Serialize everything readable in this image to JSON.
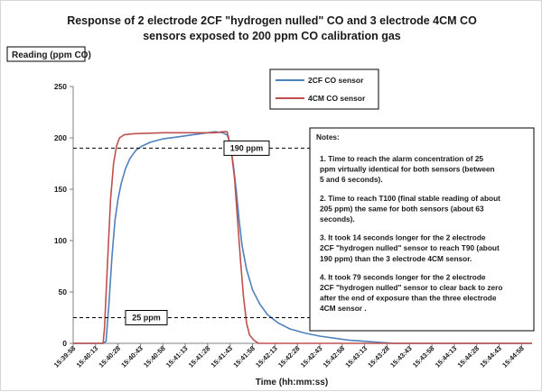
{
  "chart_data": {
    "type": "line",
    "title": "Response of 2 electrode 2CF \"hydrogen nulled\" CO and 3 electrode 4CM CO sensors exposed to 200 ppm CO calibration gas",
    "title_lines": [
      "Response of 2 electrode 2CF \"hydrogen nulled\" CO and 3 electrode 4CM CO",
      "sensors exposed to 200 ppm CO calibration gas"
    ],
    "ylabel": "Reading (ppm CO)",
    "xlabel": "Time (hh:mm:ss)",
    "ylim": [
      0,
      250
    ],
    "yticks": [
      0,
      50,
      100,
      150,
      200,
      250
    ],
    "xticks": [
      "15:39:58",
      "15:40:13",
      "15:40:28",
      "15:40:43",
      "15:40:58",
      "15:41:13",
      "15:41:28",
      "15:41:43",
      "15:41:58",
      "15:42:13",
      "15:42:28",
      "15:42:43",
      "15:42:58",
      "15:43:13",
      "15:43:28",
      "15:43:43",
      "15:43:58",
      "15:44:13",
      "15:44:28",
      "15:44:43",
      "15:44:58"
    ],
    "x_unit_seconds_from_first_tick": true,
    "xlim_seconds": [
      0,
      307
    ],
    "grid": false,
    "legend_position": "top-right",
    "series": [
      {
        "name": "2CF CO sensor",
        "color": "#4f81bd",
        "points": [
          [
            0,
            0
          ],
          [
            20,
            0
          ],
          [
            22,
            2
          ],
          [
            24,
            40
          ],
          [
            26,
            85
          ],
          [
            28,
            120
          ],
          [
            30,
            140
          ],
          [
            32,
            155
          ],
          [
            35,
            170
          ],
          [
            38,
            180
          ],
          [
            42,
            188
          ],
          [
            46,
            192
          ],
          [
            52,
            196
          ],
          [
            60,
            199
          ],
          [
            70,
            201
          ],
          [
            80,
            203
          ],
          [
            90,
            205
          ],
          [
            95,
            206
          ],
          [
            100,
            205
          ],
          [
            103,
            203
          ],
          [
            105,
            195
          ],
          [
            107,
            175
          ],
          [
            109,
            150
          ],
          [
            111,
            120
          ],
          [
            113,
            95
          ],
          [
            116,
            72
          ],
          [
            120,
            52
          ],
          [
            125,
            38
          ],
          [
            130,
            28
          ],
          [
            137,
            20
          ],
          [
            145,
            14
          ],
          [
            155,
            10
          ],
          [
            165,
            7
          ],
          [
            175,
            5
          ],
          [
            185,
            3
          ],
          [
            195,
            2
          ],
          [
            205,
            1
          ],
          [
            215,
            0
          ],
          [
            307,
            0
          ]
        ]
      },
      {
        "name": "4CM CO sensor",
        "color": "#c0504d",
        "points": [
          [
            0,
            0
          ],
          [
            20,
            0
          ],
          [
            21,
            15
          ],
          [
            23,
            80
          ],
          [
            25,
            140
          ],
          [
            27,
            175
          ],
          [
            29,
            192
          ],
          [
            31,
            200
          ],
          [
            34,
            203
          ],
          [
            40,
            204
          ],
          [
            60,
            205
          ],
          [
            80,
            205
          ],
          [
            95,
            205
          ],
          [
            100,
            206
          ],
          [
            103,
            206
          ],
          [
            104,
            200
          ],
          [
            106,
            185
          ],
          [
            108,
            160
          ],
          [
            110,
            120
          ],
          [
            112,
            80
          ],
          [
            114,
            45
          ],
          [
            116,
            20
          ],
          [
            118,
            8
          ],
          [
            121,
            3
          ],
          [
            124,
            0
          ],
          [
            307,
            0
          ]
        ]
      }
    ],
    "reference_lines": [
      {
        "label": "190 ppm",
        "value": 190
      },
      {
        "label": "25 ppm",
        "value": 25
      }
    ],
    "annotations": {
      "notes_title": "Notes:",
      "notes": [
        [
          "1.  Time to reach the alarm concentration of 25",
          "ppm virtually identical for both sensors (between",
          "5 and 6 seconds)."
        ],
        [
          "2.  Time to reach T100 (final stable reading of about",
          "205 ppm)  the same for both sensors (about 63",
          "seconds)."
        ],
        [
          "3.  It took 14 seconds longer for the 2 electrode",
          "2CF \"hydrogen nulled\" sensor to reach T90 (about",
          "190 ppm) than the 3 electrode 4CM sensor."
        ],
        [
          "4.  It took 79 seconds longer for the 2 electrode",
          "2CF \"hydrogen nulled\" sensor to  clear back to zero",
          "after the end of exposure than the three electrode",
          "4CM sensor ."
        ]
      ]
    }
  }
}
